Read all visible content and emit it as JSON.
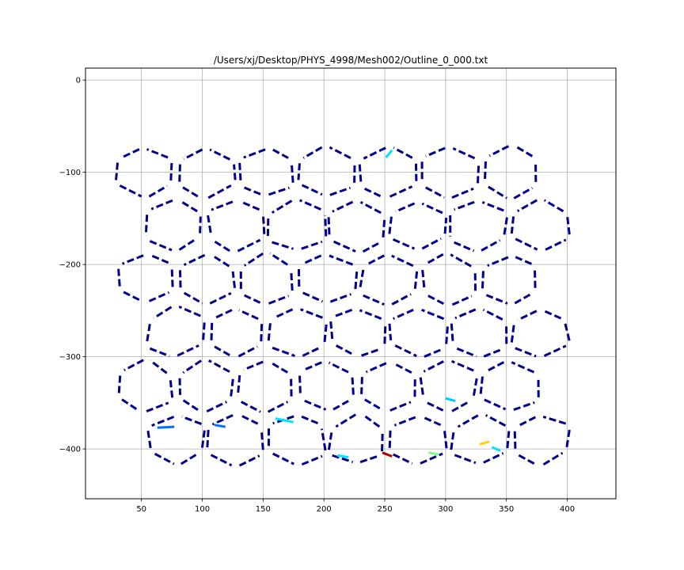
{
  "chart_data": {
    "type": "line",
    "title": "/Users/xj/Desktop/PHYS_4998/Mesh002/Outline_0_000.txt",
    "xlabel": "",
    "ylabel": "",
    "xlim": [
      4,
      440
    ],
    "ylim": [
      -454,
      13
    ],
    "x_ticks": [
      50,
      100,
      150,
      200,
      250,
      300,
      350,
      400
    ],
    "x_tick_labels": [
      "50",
      "100",
      "150",
      "200",
      "250",
      "300",
      "350",
      "400"
    ],
    "y_ticks": [
      0,
      -100,
      -200,
      -300,
      -400
    ],
    "y_tick_labels": [
      "0",
      "−100",
      "−200",
      "−300",
      "−400"
    ],
    "grid": true,
    "colormap": "jet",
    "description_of_marks": "cell-outline edge segments of a hexagonal mesh, most colored dark navy (#00008b), with a few highlighted segments in blue, cyan, green, yellow, and red",
    "grid_origin": [
      53,
      -100
    ],
    "cell_spacing": {
      "dx": 50,
      "dy": 58,
      "odd_row_shift": 25
    },
    "rows": 6,
    "cols": 7,
    "highlight_edges": [
      {
        "x1": 251,
        "y1": -84,
        "x2": 256,
        "y2": -76,
        "color": "#00e5ff"
      },
      {
        "x1": 211,
        "y1": -407,
        "x2": 220,
        "y2": -409,
        "color": "#00e5ff"
      },
      {
        "x1": 248,
        "y1": -404,
        "x2": 256,
        "y2": -408,
        "color": "#b00000"
      },
      {
        "x1": 286,
        "y1": -404,
        "x2": 294,
        "y2": -406,
        "color": "#7fff7f"
      },
      {
        "x1": 328,
        "y1": -395,
        "x2": 336,
        "y2": -392,
        "color": "#ffd200"
      },
      {
        "x1": 160,
        "y1": -367,
        "x2": 175,
        "y2": -371,
        "color": "#00e5ff"
      },
      {
        "x1": 63,
        "y1": -377,
        "x2": 77,
        "y2": -376,
        "color": "#0070ff"
      },
      {
        "x1": 110,
        "y1": -374,
        "x2": 119,
        "y2": -376,
        "color": "#0070ff"
      },
      {
        "x1": 300,
        "y1": -345,
        "x2": 308,
        "y2": -348,
        "color": "#00c8ff"
      },
      {
        "x1": 338,
        "y1": -398,
        "x2": 345,
        "y2": -402,
        "color": "#00e5ff"
      }
    ]
  }
}
